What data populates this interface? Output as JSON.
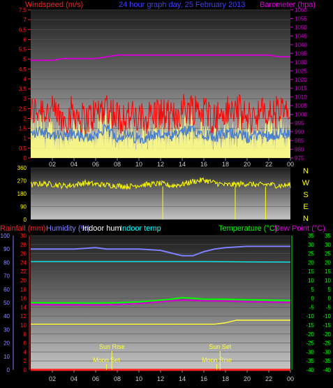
{
  "header": {
    "wind_label": "Windspeed (m/s)",
    "title": "24 hour graph day, 25 February 2013",
    "baro_label": "Barometer (hpa)"
  },
  "colors": {
    "background": "#000000",
    "plot_top": "#1e1e1e",
    "plot_bottom": "#c4c4c4",
    "axis_red": "#ff2020",
    "wind_speed": "#ff0000",
    "wind_avg": "#4a7fd0",
    "wind_gust_fill": "#ffff80",
    "baro": "#d000d0",
    "direction": "#ffff00",
    "humidity": "#8080ff",
    "indoor_hum": "#ffffff",
    "indoor_temp": "#00ffff",
    "temperature": "#00ff00",
    "dew_point": "#d000d0",
    "rain": "#ff2020",
    "sun_moon": "#ffff40"
  },
  "chart_data": [
    {
      "type": "line",
      "title": "24 hour graph day, 25 February 2013",
      "x_ticks": [
        "02",
        "04",
        "06",
        "08",
        "10",
        "12",
        "14",
        "16",
        "18",
        "20",
        "22",
        "00"
      ],
      "series": [
        {
          "name": "Windspeed (m/s)",
          "axis": "left",
          "ylim": [
            0,
            7.5
          ],
          "x_hours": [
            0,
            1,
            2,
            3,
            4,
            5,
            6,
            7,
            8,
            9,
            10,
            11,
            12,
            13,
            14,
            15,
            16,
            17,
            18,
            19,
            20,
            21,
            22,
            23,
            24
          ],
          "values": [
            2.0,
            2.3,
            2.0,
            1.7,
            2.1,
            1.6,
            2.0,
            2.4,
            1.8,
            1.9,
            1.6,
            1.9,
            2.0,
            1.7,
            2.2,
            2.3,
            2.1,
            1.8,
            2.0,
            2.2,
            1.7,
            2.0,
            1.9,
            2.1,
            1.9
          ]
        },
        {
          "name": "Barometer (hpa)",
          "axis": "right",
          "ylim": [
            975,
            1060
          ],
          "x_hours": [
            0,
            1,
            2,
            3,
            4,
            5,
            6,
            7,
            8,
            9,
            10,
            11,
            12,
            13,
            14,
            15,
            16,
            17,
            18,
            19,
            20,
            21,
            22,
            23,
            24
          ],
          "values": [
            1031,
            1031,
            1031,
            1032,
            1032,
            1032,
            1032,
            1033,
            1034,
            1034,
            1034,
            1034,
            1034,
            1034,
            1034,
            1034,
            1034,
            1034,
            1034,
            1034,
            1034,
            1034,
            1034,
            1033,
            1033
          ]
        }
      ],
      "y_ticks_left": [
        "0",
        "0.5",
        "1",
        "1.5",
        "2",
        "2.5",
        "3",
        "3.5",
        "4",
        "4.5",
        "5",
        "5.5",
        "6",
        "6.5",
        "7",
        "7.5"
      ],
      "y_ticks_right": [
        "975",
        "980",
        "985",
        "990",
        "995",
        "1000",
        "1005",
        "1010",
        "1015",
        "1020",
        "1025",
        "1030",
        "1035",
        "1040",
        "1045",
        "1050",
        "1055",
        "1060"
      ]
    },
    {
      "type": "line",
      "series": [
        {
          "name": "direction",
          "ylim": [
            0,
            360
          ],
          "x_hours": [
            0,
            1,
            2,
            3,
            4,
            5,
            6,
            7,
            8,
            9,
            10,
            11,
            12,
            13,
            14,
            15,
            16,
            17,
            18,
            19,
            20,
            21,
            22,
            23,
            24
          ],
          "values": [
            240,
            250,
            245,
            235,
            240,
            255,
            245,
            240,
            235,
            230,
            240,
            245,
            250,
            235,
            245,
            265,
            275,
            255,
            240,
            245,
            250,
            240,
            245,
            235,
            240
          ]
        }
      ],
      "y_ticks_left": [
        "0",
        "90",
        "180",
        "270",
        "360"
      ],
      "compass": [
        "N",
        "W",
        "S",
        "E",
        "N"
      ]
    },
    {
      "type": "line",
      "legend": [
        "Rainfall (mm)",
        "Humidity (%)",
        "Indoor hum",
        "Indoor temp",
        "Temperature (°C)",
        "Dew Point (°C)"
      ],
      "series": [
        {
          "name": "Humidity (%)",
          "axis": "hum",
          "ylim": [
            0,
            100
          ],
          "x_hours": [
            0,
            2,
            4,
            6,
            7,
            8,
            10,
            12,
            13,
            14,
            15,
            16,
            17,
            18,
            20,
            22,
            24
          ],
          "values": [
            90,
            90,
            90,
            91,
            90,
            90,
            90,
            89,
            87,
            85,
            85,
            88,
            90,
            91,
            92,
            92,
            92
          ]
        },
        {
          "name": "Indoor temp",
          "axis": "temp",
          "ylim": [
            -40,
            35
          ],
          "x_hours": [
            0,
            4,
            8,
            12,
            16,
            20,
            24
          ],
          "values": [
            20.5,
            20.5,
            20.5,
            20.5,
            20.5,
            20.3,
            20.2
          ]
        },
        {
          "name": "Temperature (°C)",
          "axis": "temp",
          "ylim": [
            -40,
            35
          ],
          "x_hours": [
            0,
            2,
            4,
            6,
            8,
            10,
            12,
            13,
            14,
            15,
            16,
            18,
            20,
            22,
            24
          ],
          "values": [
            -2.5,
            -2.6,
            -2.6,
            -2.7,
            -2.5,
            -2.0,
            -1.0,
            -0.5,
            0.3,
            0.0,
            -0.5,
            -0.5,
            -0.8,
            -1.0,
            -1.2
          ]
        },
        {
          "name": "Dew Point (°C)",
          "axis": "temp",
          "ylim": [
            -40,
            35
          ],
          "x_hours": [
            0,
            2,
            4,
            6,
            8,
            10,
            12,
            13,
            14,
            15,
            16,
            18,
            20,
            22,
            24
          ],
          "values": [
            -3.5,
            -3.7,
            -3.7,
            -3.8,
            -3.6,
            -3.0,
            -2.0,
            -1.5,
            -1.0,
            -1.2,
            -1.5,
            -1.6,
            -2.0,
            -2.2,
            -2.4
          ]
        },
        {
          "name": "Indoor hum",
          "axis": "hum",
          "ylim": [
            0,
            100
          ],
          "x_hours": [
            0,
            4,
            8,
            12,
            16,
            17,
            18,
            19,
            20,
            22,
            24
          ],
          "values": [
            34,
            34,
            34,
            34,
            34,
            34,
            35,
            37,
            37,
            37,
            37
          ]
        },
        {
          "name": "Rainfall (mm)",
          "axis": "rain",
          "ylim": [
            0,
            30
          ],
          "x_hours": [
            0,
            24
          ],
          "values": [
            0,
            0
          ]
        }
      ],
      "y_ticks_hum": [
        "0",
        "10",
        "20",
        "30",
        "40",
        "50",
        "60",
        "70",
        "80",
        "90",
        "100"
      ],
      "y_ticks_rain": [
        "0",
        "2",
        "4",
        "6",
        "8",
        "10",
        "12",
        "14",
        "16",
        "18",
        "20",
        "22",
        "24",
        "26",
        "28",
        "30"
      ],
      "y_ticks_temp": [
        "35",
        "30",
        "25",
        "20",
        "15",
        "10",
        "5",
        "0",
        "-5",
        "-10",
        "-15",
        "-20",
        "-25",
        "-30",
        "-35",
        "-40"
      ],
      "events": [
        {
          "label": "Sun Rise",
          "hour": 7.5
        },
        {
          "label": "Moon Set",
          "hour": 7.0
        },
        {
          "label": "Sun Set",
          "hour": 17.5
        },
        {
          "label": "Moon Rise",
          "hour": 17.2
        }
      ],
      "bottom_label_overlap": "16 Sun Set 00"
    }
  ]
}
